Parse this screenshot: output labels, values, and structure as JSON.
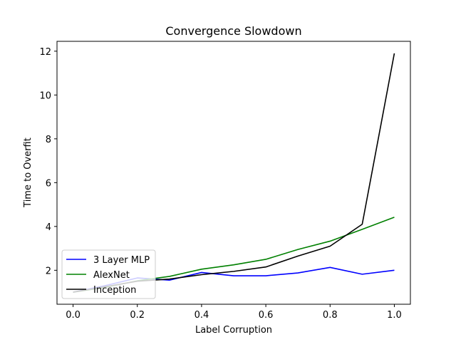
{
  "chart_data": {
    "type": "line",
    "title": "Convergence Slowdown",
    "xlabel": "Label Corruption",
    "ylabel": "Time to Overfit",
    "xlim": [
      -0.05,
      1.05
    ],
    "ylim": [
      0.45,
      12.45
    ],
    "xticks": [
      0.0,
      0.2,
      0.4,
      0.6,
      0.8,
      1.0
    ],
    "xtick_labels": [
      "0.0",
      "0.2",
      "0.4",
      "0.6",
      "0.8",
      "1.0"
    ],
    "yticks": [
      2,
      4,
      6,
      8,
      10,
      12
    ],
    "ytick_labels": [
      "2",
      "4",
      "6",
      "8",
      "10",
      "12"
    ],
    "grid": false,
    "legend_position": "lower-left",
    "x": [
      0.0,
      0.1,
      0.2,
      0.3,
      0.4,
      0.5,
      0.6,
      0.7,
      0.8,
      0.9,
      1.0
    ],
    "series": [
      {
        "name": "3 Layer MLP",
        "color": "#0000ff",
        "values": [
          1.0,
          1.3,
          1.65,
          1.55,
          1.9,
          1.75,
          1.75,
          1.88,
          2.13,
          1.82,
          2.0
        ]
      },
      {
        "name": "AlexNet",
        "color": "#008000",
        "values": [
          1.0,
          1.22,
          1.52,
          1.72,
          2.05,
          2.25,
          2.5,
          2.95,
          3.33,
          3.87,
          4.42
        ]
      },
      {
        "name": "Inception",
        "color": "#000000",
        "values": [
          1.0,
          1.25,
          1.5,
          1.6,
          1.8,
          1.95,
          2.15,
          2.65,
          3.1,
          4.1,
          11.9
        ]
      }
    ]
  }
}
